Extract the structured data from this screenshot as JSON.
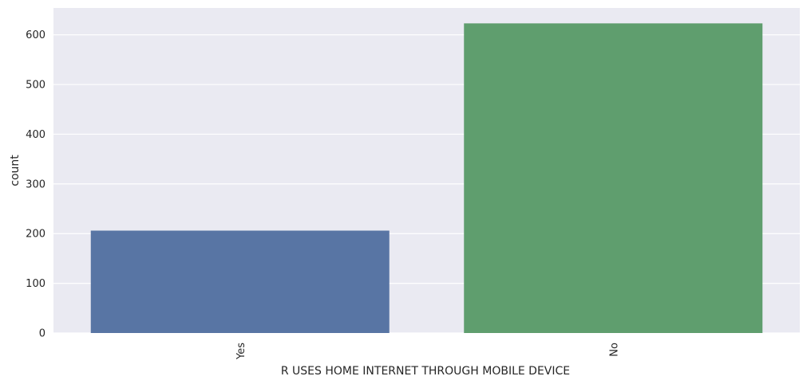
{
  "chart_data": {
    "type": "bar",
    "xlabel": "R USES HOME INTERNET THROUGH MOBILE DEVICE",
    "ylabel": "count",
    "categories": [
      "Yes",
      "No"
    ],
    "values": [
      206,
      623
    ],
    "colors": [
      "#5875a4",
      "#5f9e6e"
    ],
    "ylim": [
      0,
      654
    ],
    "yticks": [
      "0",
      "100",
      "200",
      "300",
      "400",
      "500",
      "600"
    ],
    "grid": true,
    "background": "#eaeaf2",
    "grid_color": "#ffffff",
    "xtick_rotation": "vertical"
  }
}
